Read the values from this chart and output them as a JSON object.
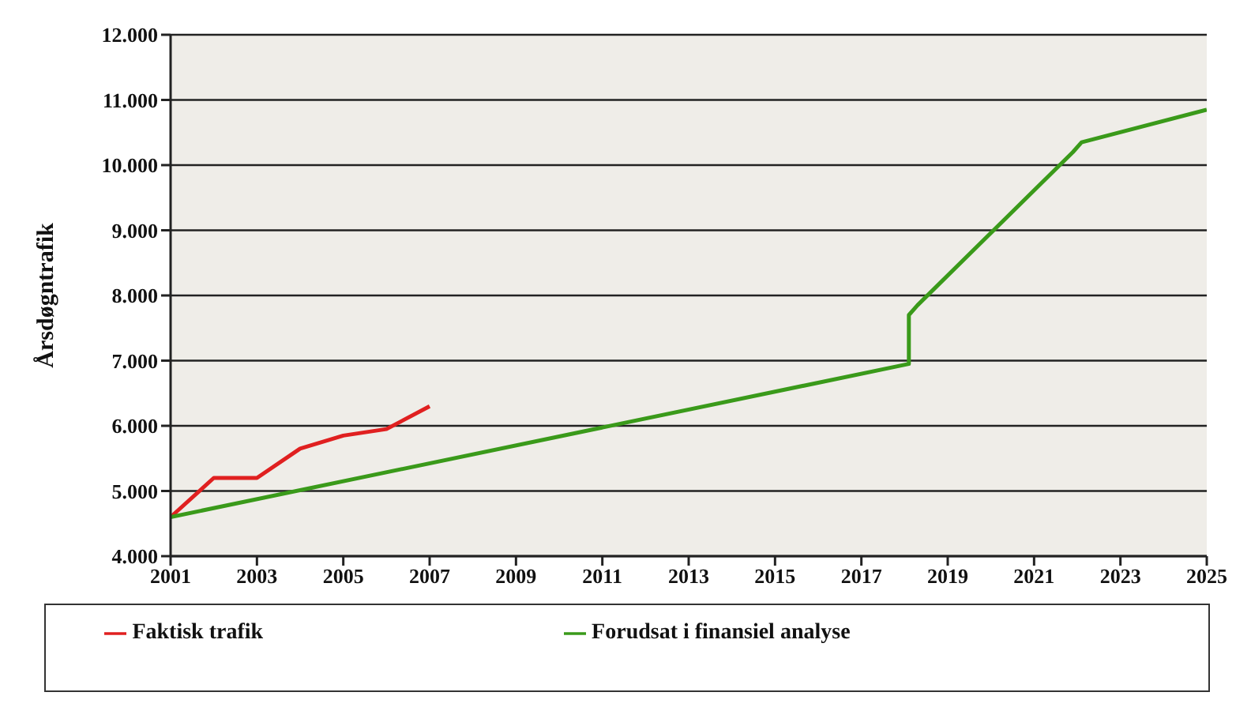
{
  "chart_data": {
    "type": "line",
    "ylabel": "Årsdøgntrafik",
    "xlim": [
      2001,
      2025
    ],
    "xticks": [
      2001,
      2003,
      2005,
      2007,
      2009,
      2011,
      2013,
      2015,
      2017,
      2019,
      2021,
      2023,
      2025
    ],
    "ylim": [
      4000,
      12000
    ],
    "yticks": [
      {
        "value": 4000,
        "label": "4.000"
      },
      {
        "value": 5000,
        "label": "5.000"
      },
      {
        "value": 6000,
        "label": "6.000"
      },
      {
        "value": 7000,
        "label": "7.000"
      },
      {
        "value": 8000,
        "label": "8.000"
      },
      {
        "value": 9000,
        "label": "9.000"
      },
      {
        "value": 10000,
        "label": "10.000"
      },
      {
        "value": 11000,
        "label": "11.000"
      },
      {
        "value": 12000,
        "label": "12.000"
      }
    ],
    "grid": "y",
    "legend": "bottom",
    "marker": "none",
    "line_style": "solid",
    "series": [
      {
        "name": "Faktisk trafik",
        "color": "#e02020",
        "x": [
          2001,
          2002,
          2003,
          2004,
          2005,
          2006,
          2007
        ],
        "values": [
          4600,
          5200,
          5200,
          5650,
          5850,
          5950,
          6300
        ]
      },
      {
        "name": "Forudsat i finansiel analyse",
        "color": "#3a9a1a",
        "x": [
          2001,
          2018.1,
          2018.1,
          2018.3,
          2021.9,
          2022.1,
          2025
        ],
        "values": [
          4600,
          6950,
          7700,
          7850,
          10200,
          10350,
          10850
        ]
      }
    ]
  }
}
